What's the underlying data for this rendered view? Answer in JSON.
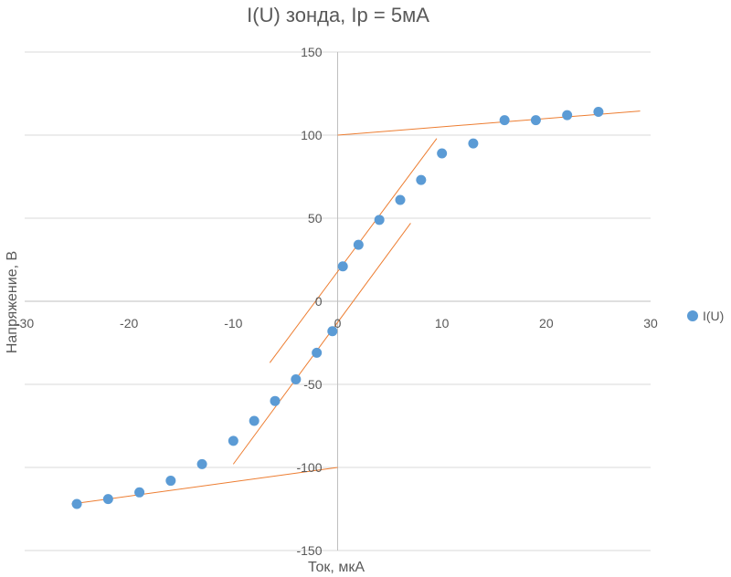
{
  "chart_data": {
    "type": "scatter",
    "title": "I(U) зонда, Iр = 5мА",
    "xlabel": "Ток, мкА",
    "ylabel": "Напряжение, В",
    "xlim": [
      -30,
      30
    ],
    "ylim": [
      -150,
      150
    ],
    "x_ticks": [
      "-30",
      "-20",
      "-10",
      "0",
      "10",
      "20",
      "30"
    ],
    "y_ticks": [
      "150",
      "100",
      "50",
      "0",
      "-50",
      "-100",
      "-150"
    ],
    "grid": true,
    "legend": {
      "position": "right",
      "entries": [
        "I(U)"
      ]
    },
    "colors": {
      "series": "#5b9bd5",
      "trendlines": "#ed7d31",
      "grid": "#d9d9d9",
      "axis": "#bfbfbf"
    },
    "series": [
      {
        "name": "I(U)",
        "points": [
          {
            "x": -25,
            "y": -122
          },
          {
            "x": -22,
            "y": -119
          },
          {
            "x": -19,
            "y": -115
          },
          {
            "x": -16,
            "y": -108
          },
          {
            "x": -13,
            "y": -98
          },
          {
            "x": -10,
            "y": -84
          },
          {
            "x": -8,
            "y": -72
          },
          {
            "x": -6,
            "y": -60
          },
          {
            "x": -4,
            "y": -47
          },
          {
            "x": -2,
            "y": -31
          },
          {
            "x": -0.5,
            "y": -18
          },
          {
            "x": 0.5,
            "y": 21
          },
          {
            "x": 2,
            "y": 34
          },
          {
            "x": 4,
            "y": 49
          },
          {
            "x": 6,
            "y": 61
          },
          {
            "x": 8,
            "y": 73
          },
          {
            "x": 10,
            "y": 89
          },
          {
            "x": 13,
            "y": 95
          },
          {
            "x": 16,
            "y": 109
          },
          {
            "x": 19,
            "y": 109
          },
          {
            "x": 22,
            "y": 112
          },
          {
            "x": 25,
            "y": 114
          }
        ]
      }
    ],
    "trendlines": [
      {
        "x1": 0,
        "y1": 100,
        "x2": 29,
        "y2": 114.5
      },
      {
        "x1": -25.5,
        "y1": -122,
        "x2": 0,
        "y2": -100
      },
      {
        "x1": -6.5,
        "y1": -37,
        "x2": 9.5,
        "y2": 98
      },
      {
        "x1": -10,
        "y1": -98,
        "x2": 7,
        "y2": 47
      }
    ]
  }
}
